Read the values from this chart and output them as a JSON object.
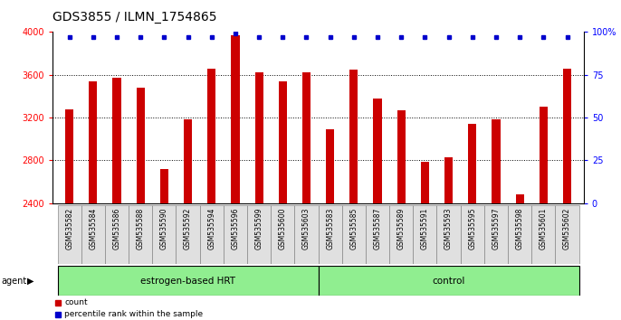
{
  "title": "GDS3855 / ILMN_1754865",
  "categories": [
    "GSM535582",
    "GSM535584",
    "GSM535586",
    "GSM535588",
    "GSM535590",
    "GSM535592",
    "GSM535594",
    "GSM535596",
    "GSM535599",
    "GSM535600",
    "GSM535603",
    "GSM535583",
    "GSM535585",
    "GSM535587",
    "GSM535589",
    "GSM535591",
    "GSM535593",
    "GSM535595",
    "GSM535597",
    "GSM535598",
    "GSM535601",
    "GSM535602"
  ],
  "bar_values": [
    3280,
    3540,
    3570,
    3480,
    2720,
    3180,
    3660,
    3970,
    3620,
    3540,
    3620,
    3090,
    3650,
    3380,
    3270,
    2790,
    2830,
    3140,
    3180,
    2480,
    3300,
    3660
  ],
  "percentile_values": [
    97,
    97,
    97,
    97,
    97,
    97,
    97,
    99,
    97,
    97,
    97,
    97,
    97,
    97,
    97,
    97,
    97,
    97,
    97,
    97,
    97,
    97
  ],
  "group_labels": [
    "estrogen-based HRT",
    "control"
  ],
  "n_estrogen": 11,
  "n_control": 11,
  "bar_color": "#CC0000",
  "dot_color": "#0000CC",
  "group_color": "#90EE90",
  "ylim_left": [
    2400,
    4000
  ],
  "ylim_right": [
    0,
    100
  ],
  "yticks_left": [
    2400,
    2800,
    3200,
    3600,
    4000
  ],
  "yticks_right": [
    0,
    25,
    50,
    75,
    100
  ],
  "ytick_labels_right": [
    "0",
    "25",
    "50",
    "75",
    "100%"
  ],
  "grid_values": [
    2800,
    3200,
    3600
  ],
  "legend_count_label": "count",
  "legend_pct_label": "percentile rank within the sample",
  "agent_label": "agent",
  "title_fontsize": 10,
  "tick_fontsize": 6.5,
  "axis_tick_fontsize": 7,
  "label_fontsize": 7.5,
  "xlabel_fontsize": 5.5
}
